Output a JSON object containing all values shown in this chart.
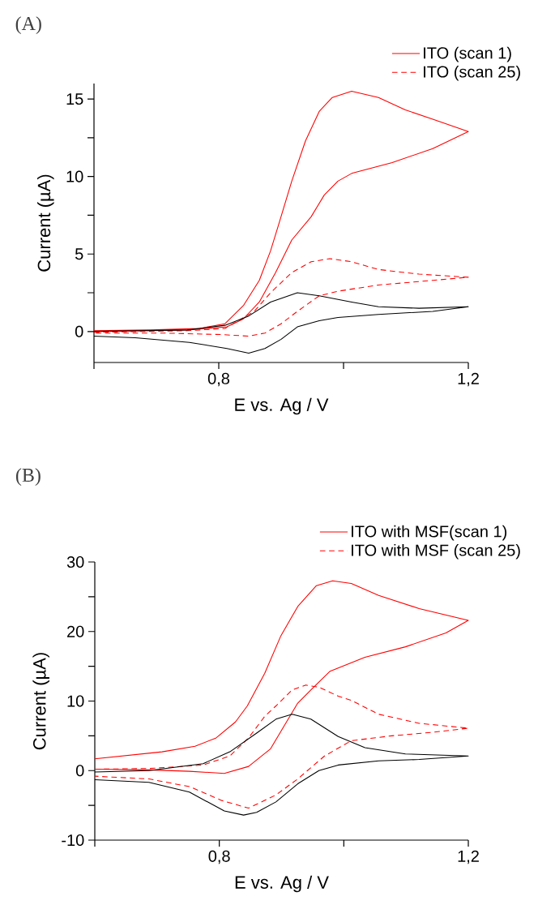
{
  "chart_data": [
    {
      "type": "line",
      "title": "(A)",
      "xlabel": "E vs. Ag / V",
      "ylabel": "Current (µA)",
      "legend": "top right",
      "marker": "none",
      "xlim": [
        0.6,
        1.2
      ],
      "xticks": [
        {
          "value": 0.6,
          "label": null
        },
        {
          "value": 0.8,
          "label": "0,8"
        },
        {
          "value": 1.0,
          "label": null
        },
        {
          "value": 1.2,
          "label": "1,2"
        }
      ],
      "ylim": [
        -2,
        16
      ],
      "yticks": [
        0,
        {
          "value": 2.5,
          "label": null
        },
        5,
        {
          "value": 7.5,
          "label": null
        },
        10,
        {
          "value": 12.5,
          "label": null
        },
        15
      ],
      "series": [
        {
          "name": "ITO (scan 1)",
          "color": "#ff0000",
          "line_style": "solid",
          "x": [
            0.6,
            0.69,
            0.77,
            0.81,
            0.84,
            0.865,
            0.883,
            0.896,
            0.917,
            0.939,
            0.961,
            0.982,
            1.013,
            1.056,
            1.099,
            1.143,
            1.2,
            1.143,
            1.078,
            1.013,
            0.991,
            0.969,
            0.948,
            0.917,
            0.891,
            0.865,
            0.839,
            0.813,
            0.75,
            0.6
          ],
          "values": [
            0.05,
            0.1,
            0.2,
            0.5,
            1.7,
            3.3,
            5.2,
            6.9,
            9.7,
            12.3,
            14.2,
            15.1,
            15.5,
            15.1,
            14.3,
            13.7,
            12.9,
            11.8,
            10.9,
            10.2,
            9.7,
            8.8,
            7.4,
            5.9,
            3.8,
            1.9,
            0.8,
            0.3,
            0.1,
            0.0
          ]
        },
        {
          "name": "ITO (scan 25)",
          "color": "#ff0000",
          "line_style": "dashed",
          "x": [
            0.6,
            0.75,
            0.81,
            0.857,
            0.883,
            0.917,
            0.948,
            0.978,
            1.013,
            1.056,
            1.121,
            1.2,
            1.143,
            1.056,
            0.991,
            0.961,
            0.926,
            0.9,
            0.874,
            0.848,
            0.805,
            0.71,
            0.6
          ],
          "values": [
            -0.05,
            0.05,
            0.2,
            1.3,
            2.5,
            3.8,
            4.5,
            4.7,
            4.5,
            4.0,
            3.7,
            3.5,
            3.3,
            3.0,
            2.6,
            2.3,
            1.3,
            0.5,
            -0.1,
            -0.3,
            -0.2,
            -0.1,
            -0.1
          ]
        },
        {
          "color": "#000000",
          "line_style": "solid",
          "x": [
            0.6,
            0.75,
            0.81,
            0.848,
            0.883,
            0.926,
            0.961,
            1.013,
            1.056,
            1.121,
            1.2,
            1.143,
            1.056,
            0.991,
            0.961,
            0.926,
            0.9,
            0.874,
            0.848,
            0.813,
            0.753,
            0.666,
            0.6
          ],
          "values": [
            0.0,
            0.1,
            0.4,
            1.0,
            1.9,
            2.5,
            2.3,
            1.9,
            1.6,
            1.5,
            1.6,
            1.3,
            1.1,
            0.9,
            0.7,
            0.3,
            -0.5,
            -1.1,
            -1.4,
            -1.1,
            -0.7,
            -0.4,
            -0.3
          ]
        }
      ]
    },
    {
      "type": "line",
      "title": "(B)",
      "xlabel": "E vs. Ag / V",
      "ylabel": "Current (µA)",
      "legend": "top right",
      "marker": "none",
      "xlim": [
        0.6,
        1.2
      ],
      "xticks": [
        {
          "value": 0.6,
          "label": null
        },
        {
          "value": 0.8,
          "label": "0,8"
        },
        {
          "value": 1.0,
          "label": null
        },
        {
          "value": 1.2,
          "label": "1,2"
        }
      ],
      "ylim": [
        -10,
        30
      ],
      "yticks": [
        -10,
        {
          "value": -5,
          "label": null
        },
        0,
        {
          "value": 5,
          "label": null
        },
        10,
        {
          "value": 15,
          "label": null
        },
        20,
        {
          "value": 25,
          "label": null
        },
        30
      ],
      "series": [
        {
          "name": "ITO with MSF(scan 1)",
          "color": "#ff0000",
          "line_style": "solid",
          "x": [
            0.6,
            0.708,
            0.761,
            0.795,
            0.826,
            0.845,
            0.873,
            0.899,
            0.926,
            0.956,
            0.982,
            1.012,
            1.056,
            1.121,
            1.2,
            1.164,
            1.099,
            1.034,
            0.978,
            0.947,
            0.926,
            0.882,
            0.847,
            0.808,
            0.752,
            0.687,
            0.6
          ],
          "values": [
            1.7,
            2.7,
            3.5,
            4.7,
            7.0,
            9.3,
            14.0,
            19.4,
            23.6,
            26.6,
            27.3,
            26.9,
            25.2,
            23.3,
            21.6,
            19.8,
            17.8,
            16.3,
            14.3,
            11.6,
            9.7,
            3.1,
            0.6,
            -0.4,
            -0.1,
            0.1,
            0.2
          ]
        },
        {
          "name": "ITO with MSF (scan 25)",
          "color": "#ff0000",
          "line_style": "dashed",
          "x": [
            0.6,
            0.687,
            0.774,
            0.817,
            0.847,
            0.873,
            0.891,
            0.917,
            0.939,
            0.96,
            0.991,
            1.012,
            1.056,
            1.121,
            1.2,
            1.142,
            1.077,
            1.012,
            0.969,
            0.926,
            0.891,
            0.847,
            0.804,
            0.752,
            0.687,
            0.6
          ],
          "values": [
            0.2,
            0.3,
            0.8,
            2.1,
            4.7,
            7.8,
            9.3,
            11.6,
            12.3,
            12.0,
            10.7,
            10.1,
            8.1,
            6.8,
            6.1,
            5.5,
            5.0,
            4.3,
            2.1,
            -1.2,
            -3.5,
            -5.4,
            -4.3,
            -2.3,
            -1.2,
            -0.8
          ]
        },
        {
          "color": "#000000",
          "line_style": "solid",
          "x": [
            0.6,
            0.687,
            0.774,
            0.817,
            0.86,
            0.891,
            0.917,
            0.947,
            0.991,
            1.034,
            1.099,
            1.2,
            1.121,
            1.056,
            0.991,
            0.96,
            0.926,
            0.891,
            0.86,
            0.839,
            0.808,
            0.752,
            0.687,
            0.6
          ],
          "values": [
            -0.2,
            0.0,
            1.0,
            2.7,
            5.4,
            7.4,
            8.1,
            7.4,
            4.9,
            3.3,
            2.4,
            2.1,
            1.6,
            1.4,
            0.8,
            0.0,
            -1.9,
            -4.5,
            -6.0,
            -6.4,
            -5.8,
            -3.1,
            -1.7,
            -1.3
          ]
        }
      ]
    }
  ]
}
